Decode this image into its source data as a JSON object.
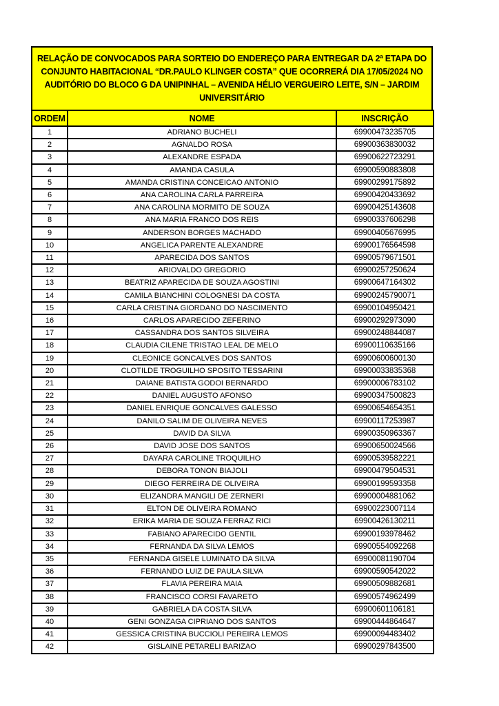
{
  "notice": {
    "title": "RELAÇÃO DE CONVOCADOS PARA SORTEIO DO ENDEREÇO PARA ENTREGAR DA 2ª ETAPA DO CONJUNTO HABITACIONAL “DR.PAULO KLINGER COSTA” QUE OCORRERÁ DIA 17/05/2024 NO AUDITÓRIO DO BLOCO G DA UNIPINHAL – AVENIDA HÉLIO VERGUEIRO LEITE, S/N – JARDIM UNIVERSITÁRIO"
  },
  "colors": {
    "highlight": "#FFFF00",
    "border": "#000000",
    "text": "#000000",
    "page_background": "#FFFFFF"
  },
  "table": {
    "headers": [
      "ORDEM",
      "NOME",
      "INSCRIÇÃO"
    ],
    "rows": [
      {
        "ordem": "1",
        "nome": "ADRIANO BUCHELI",
        "inscricao": "69900473235705"
      },
      {
        "ordem": "2",
        "nome": "AGNALDO ROSA",
        "inscricao": "69900363830032"
      },
      {
        "ordem": "3",
        "nome": "ALEXANDRE ESPADA",
        "inscricao": "69900622723291"
      },
      {
        "ordem": "4",
        "nome": "AMANDA CASULA",
        "inscricao": "69900590883808"
      },
      {
        "ordem": "5",
        "nome": "AMANDA CRISTINA CONCEICAO ANTONIO",
        "inscricao": "69900299175892"
      },
      {
        "ordem": "6",
        "nome": "ANA CAROLINA CARLA PARREIRA",
        "inscricao": "69900420433692"
      },
      {
        "ordem": "7",
        "nome": "ANA CAROLINA MORMITO DE SOUZA",
        "inscricao": "69900425143608"
      },
      {
        "ordem": "8",
        "nome": "ANA MARIA FRANCO DOS REIS",
        "inscricao": "69900337606298"
      },
      {
        "ordem": "9",
        "nome": "ANDERSON BORGES MACHADO",
        "inscricao": "69900405676995"
      },
      {
        "ordem": "10",
        "nome": "ANGELICA PARENTE ALEXANDRE",
        "inscricao": "69900176564598"
      },
      {
        "ordem": "11",
        "nome": "APARECIDA DOS SANTOS",
        "inscricao": "69900579671501"
      },
      {
        "ordem": "12",
        "nome": "ARIOVALDO GREGORIO",
        "inscricao": "69900257250624"
      },
      {
        "ordem": "13",
        "nome": "BEATRIZ APARECIDA DE SOUZA AGOSTINI",
        "inscricao": "69900647164302"
      },
      {
        "ordem": "14",
        "nome": "CAMILA BIANCHINI COLOGNESI DA COSTA",
        "inscricao": "69900245790071"
      },
      {
        "ordem": "15",
        "nome": "CARLA CRISTINA GIORDANO DO NASCIMENTO",
        "inscricao": "69900104950421"
      },
      {
        "ordem": "16",
        "nome": "CARLOS APARECIDO ZEFERINO",
        "inscricao": "69900292973090"
      },
      {
        "ordem": "17",
        "nome": "CASSANDRA DOS SANTOS SILVEIRA",
        "inscricao": "69900248844087"
      },
      {
        "ordem": "18",
        "nome": "CLAUDIA CILENE TRISTAO LEAL DE MELO",
        "inscricao": "69900110635166"
      },
      {
        "ordem": "19",
        "nome": "CLEONICE GONCALVES DOS SANTOS",
        "inscricao": "69900600600130"
      },
      {
        "ordem": "20",
        "nome": "CLOTILDE TROGUILHO SPOSITO TESSARINI",
        "inscricao": "69900033835368"
      },
      {
        "ordem": "21",
        "nome": "DAIANE BATISTA GODOI BERNARDO",
        "inscricao": "69900006783102"
      },
      {
        "ordem": "22",
        "nome": "DANIEL AUGUSTO AFONSO",
        "inscricao": "69900347500823"
      },
      {
        "ordem": "23",
        "nome": "DANIEL ENRIQUE GONCALVES GALESSO",
        "inscricao": "69900654654351"
      },
      {
        "ordem": "24",
        "nome": "DANILO SALIM DE OLIVEIRA NEVES",
        "inscricao": "69900117253987"
      },
      {
        "ordem": "25",
        "nome": "DAVID DA SILVA",
        "inscricao": "69900350963367"
      },
      {
        "ordem": "26",
        "nome": "DAVID JOSE DOS SANTOS",
        "inscricao": "69900650024566"
      },
      {
        "ordem": "27",
        "nome": "DAYARA CAROLINE TROQUILHO",
        "inscricao": "69900539582221"
      },
      {
        "ordem": "28",
        "nome": "DEBORA TONON BIAJOLI",
        "inscricao": "69900479504531"
      },
      {
        "ordem": "29",
        "nome": "DIEGO FERREIRA DE OLIVEIRA",
        "inscricao": "69900199593358"
      },
      {
        "ordem": "30",
        "nome": "ELIZANDRA MANGILI DE ZERNERI",
        "inscricao": "69900004881062"
      },
      {
        "ordem": "31",
        "nome": "ELTON DE OLIVEIRA ROMANO",
        "inscricao": "69900223007114"
      },
      {
        "ordem": "32",
        "nome": "ERIKA MARIA DE SOUZA FERRAZ RICI",
        "inscricao": "69900426130211"
      },
      {
        "ordem": "33",
        "nome": "FABIANO APARECIDO GENTIL",
        "inscricao": "69900193978462"
      },
      {
        "ordem": "34",
        "nome": "FERNANDA DA SILVA LEMOS",
        "inscricao": "69900554092268"
      },
      {
        "ordem": "35",
        "nome": "FERNANDA GISELE LUMINATO DA SILVA",
        "inscricao": "69900081190704"
      },
      {
        "ordem": "36",
        "nome": "FERNANDO LUIZ DE PAULA SILVA",
        "inscricao": "69900590542022"
      },
      {
        "ordem": "37",
        "nome": "FLAVIA PEREIRA MAIA",
        "inscricao": "69900509882681"
      },
      {
        "ordem": "38",
        "nome": "FRANCISCO CORSI FAVARETO",
        "inscricao": "69900574962499"
      },
      {
        "ordem": "39",
        "nome": "GABRIELA DA COSTA SILVA",
        "inscricao": "69900601106181"
      },
      {
        "ordem": "40",
        "nome": "GENI GONZAGA CIPRIANO DOS SANTOS",
        "inscricao": "69900444864647"
      },
      {
        "ordem": "41",
        "nome": "GESSICA CRISTINA BUCCIOLI PEREIRA LEMOS",
        "inscricao": "69900094483402"
      },
      {
        "ordem": "42",
        "nome": "GISLAINE PETARELI BARIZAO",
        "inscricao": "69900297843500"
      }
    ]
  }
}
